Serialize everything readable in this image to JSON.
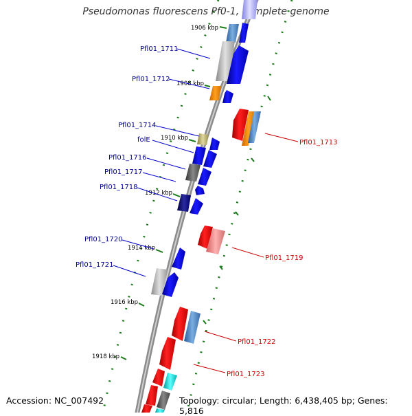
{
  "title": "Pseudomonas fluorescens Pf0-1, complete genome",
  "accession": "Accession: NC_007492",
  "topology": "Topology: circular; Length: 6,438,405 bp; Genes: 5,816",
  "ticks": [
    "1906 kbp",
    "1908 kbp",
    "1910 kbp",
    "1912 kbp",
    "1914 kbp",
    "1916 kbp",
    "1918 kbp"
  ],
  "genes_left": [
    "Pfl01_1711",
    "Pfl01_1712",
    "Pfl01_1714",
    "folE",
    "Pfl01_1716",
    "Pfl01_1717",
    "Pfl01_1718",
    "Pfl01_1720",
    "Pfl01_1721"
  ],
  "genes_right": [
    "Pfl01_1713",
    "Pfl01_1719",
    "Pfl01_1722",
    "Pfl01_1723"
  ],
  "colors": {
    "forward": "#0000ee",
    "reverse": "#ee0000",
    "label_left": "#00008b",
    "label_right": "#cc0000",
    "tick": "#1a7a1a",
    "backbone": "#8c8c8c"
  }
}
